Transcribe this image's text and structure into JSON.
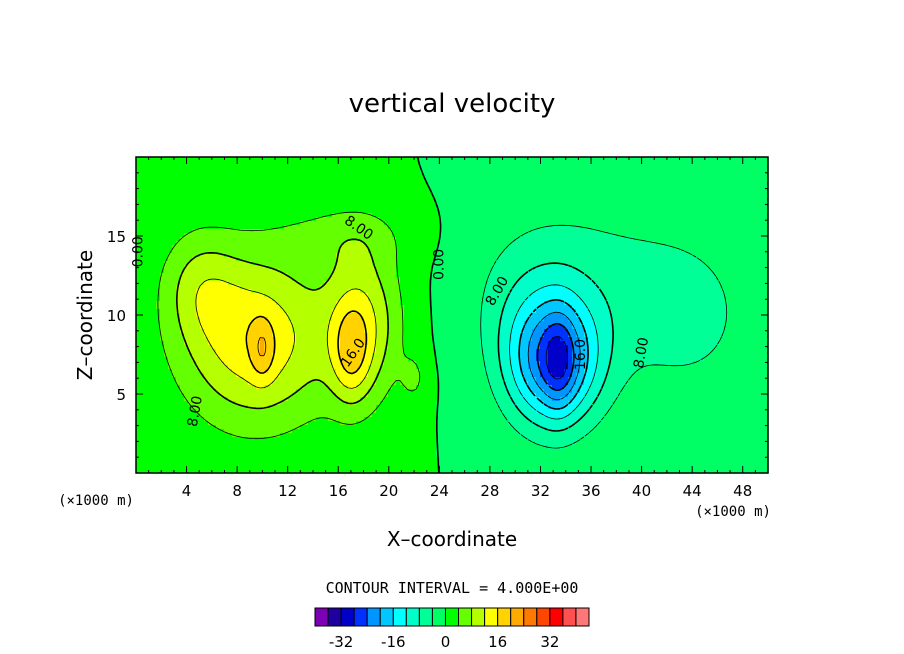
{
  "chart_data": {
    "type": "contour",
    "title": "vertical velocity",
    "xlabel": "X–coordinate",
    "ylabel": "Z–coordinate",
    "x_unit_left": "(×1000 m)",
    "x_unit_right": "(×1000 m)",
    "xlim": [
      0,
      50
    ],
    "ylim": [
      0,
      20
    ],
    "xticks": [
      4,
      8,
      12,
      16,
      20,
      24,
      28,
      32,
      36,
      40,
      44,
      48
    ],
    "yticks": [
      5,
      10,
      15
    ],
    "contour_interval_label": "CONTOUR INTERVAL =  4.000E+00",
    "contour_labels": [
      {
        "text": "8.00",
        "x": 17.6,
        "z": 15.5,
        "rot": 35
      },
      {
        "text": "0.00",
        "x": 0.2,
        "z": 14.0,
        "rot": -90
      },
      {
        "text": "0.00",
        "x": 24.0,
        "z": 13.2,
        "rot": -90
      },
      {
        "text": "16.0",
        "x": 17.2,
        "z": 7.6,
        "rot": -55
      },
      {
        "text": "8.00",
        "x": 4.7,
        "z": 3.9,
        "rot": -80
      },
      {
        "text": "8.00",
        "x": 28.6,
        "z": 11.5,
        "rot": -60
      },
      {
        "text": "16.0",
        "x": 35.2,
        "z": 7.5,
        "rot": -90
      },
      {
        "text": "8.00",
        "x": 40.0,
        "z": 7.6,
        "rot": -80
      }
    ],
    "colorbar": {
      "min": -40,
      "max": 44,
      "step": 4,
      "tick_labels": [
        "-32",
        "-16",
        "0",
        "16",
        "32"
      ],
      "tick_values": [
        -32,
        -16,
        0,
        16,
        32
      ],
      "colors": [
        "#7d00b4",
        "#1e00a0",
        "#0000c8",
        "#0032ff",
        "#0096ff",
        "#00c8ff",
        "#00ffff",
        "#00ffc8",
        "#00ff96",
        "#00ff64",
        "#00ff00",
        "#64ff00",
        "#b4ff00",
        "#ffff00",
        "#ffd200",
        "#ffaa00",
        "#ff7800",
        "#ff4600",
        "#ff0000",
        "#ff5050",
        "#ff7878"
      ]
    },
    "background_color": "#22ff00",
    "features": [
      {
        "x": 9.5,
        "z": 8.5,
        "amp": 15.0,
        "sx": 6.0,
        "sz": 5.5
      },
      {
        "x": 5.0,
        "z": 12.0,
        "amp": 6.0,
        "sx": 3.0,
        "sz": 3.5
      },
      {
        "x": 10.0,
        "z": 7.8,
        "amp": 6.0,
        "sx": 0.9,
        "sz": 1.9
      },
      {
        "x": 18.0,
        "z": 9.5,
        "amp": 11.0,
        "sx": 3.0,
        "sz": 5.0
      },
      {
        "x": 17.0,
        "z": 7.5,
        "amp": 8.0,
        "sx": 1.5,
        "sz": 3.0
      },
      {
        "x": 16.5,
        "z": 15.0,
        "amp": 4.0,
        "sx": 5.0,
        "sz": 2.0
      },
      {
        "x": 22.0,
        "z": 6.0,
        "amp": 4.0,
        "sx": 1.0,
        "sz": 1.5
      },
      {
        "x": 33.0,
        "z": 7.0,
        "amp": -22.0,
        "sx": 3.6,
        "sz": 4.0
      },
      {
        "x": 33.5,
        "z": 7.0,
        "amp": -6.0,
        "sx": 1.2,
        "sz": 3.0
      },
      {
        "x": 31.0,
        "z": 11.0,
        "amp": -4.0,
        "sx": 5.0,
        "sz": 5.0
      },
      {
        "x": 36.0,
        "z": 12.0,
        "amp": -4.0,
        "sx": 7.0,
        "sz": 6.0
      },
      {
        "x": 44.0,
        "z": 10.0,
        "amp": -4.5,
        "sx": 6.0,
        "sz": 6.0
      }
    ]
  }
}
